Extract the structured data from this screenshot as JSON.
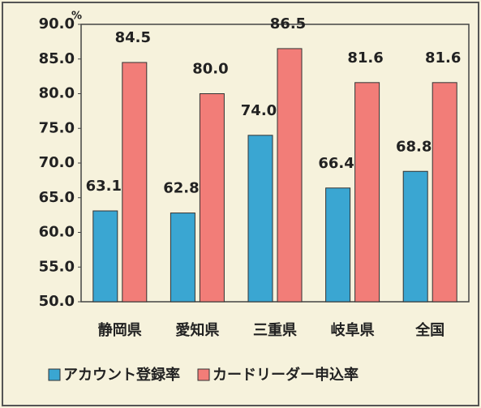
{
  "chart_data": {
    "type": "bar",
    "y_unit": "%",
    "categories": [
      "静岡県",
      "愛知県",
      "三重県",
      "岐阜県",
      "全国"
    ],
    "series": [
      {
        "name": "アカウント登録率",
        "color": "#3aa6d2",
        "values": [
          63.1,
          62.8,
          74.0,
          66.4,
          68.8
        ],
        "value_labels": [
          "63.1",
          "62.8",
          "74.0",
          "66.4",
          "68.8"
        ]
      },
      {
        "name": "カードリーダー申込率",
        "color": "#f27d78",
        "values": [
          84.5,
          80.0,
          86.5,
          81.6,
          81.6
        ],
        "value_labels": [
          "84.5",
          "80.0",
          "86.5",
          "81.6",
          "81.6"
        ]
      }
    ],
    "ylim": [
      50,
      90
    ],
    "yticks": [
      {
        "value": 50,
        "label": "50.0"
      },
      {
        "value": 55,
        "label": "55.0"
      },
      {
        "value": 60,
        "label": "60.0"
      },
      {
        "value": 65,
        "label": "65.0"
      },
      {
        "value": 70,
        "label": "70.0"
      },
      {
        "value": 75,
        "label": "75.0"
      },
      {
        "value": 80,
        "label": "80.0"
      },
      {
        "value": 85,
        "label": "85.0"
      },
      {
        "value": 90,
        "label": "90.0"
      }
    ],
    "legend": "bottom"
  }
}
